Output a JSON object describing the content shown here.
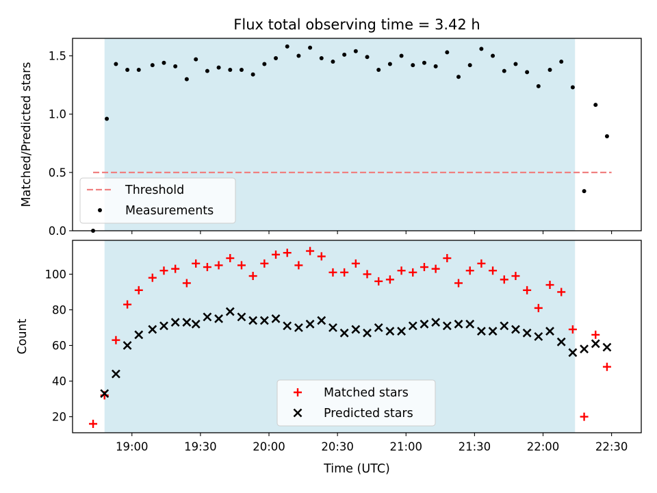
{
  "chart_data": [
    {
      "type": "scatter",
      "title": "Flux total observing time = 3.42 h",
      "xlabel": "",
      "ylabel": "Matched/Predicted stars",
      "ylim": [
        0,
        1.65
      ],
      "yticks": [
        0.0,
        0.5,
        1.0,
        1.5
      ],
      "ytick_labels": [
        "0.0",
        "0.5",
        "1.0",
        "1.5"
      ],
      "xlim": [
        "18:34",
        "22:43"
      ],
      "shaded_interval": [
        "18:48",
        "22:14"
      ],
      "shaded_color": "#add8e6",
      "threshold": {
        "name": "Threshold",
        "value": 0.5,
        "x_range": [
          "18:43",
          "22:30"
        ],
        "color": "#f08080",
        "style": "dashed"
      },
      "series": [
        {
          "name": "Measurements",
          "color": "#000000",
          "marker": "dot",
          "x": [
            "18:43",
            "18:49",
            "18:53",
            "18:58",
            "19:03",
            "19:09",
            "19:14",
            "19:19",
            "19:24",
            "19:28",
            "19:33",
            "19:38",
            "19:43",
            "19:48",
            "19:53",
            "19:58",
            "20:03",
            "20:08",
            "20:13",
            "20:18",
            "20:23",
            "20:28",
            "20:33",
            "20:38",
            "20:43",
            "20:48",
            "20:53",
            "20:58",
            "21:03",
            "21:08",
            "21:13",
            "21:18",
            "21:23",
            "21:28",
            "21:33",
            "21:38",
            "21:43",
            "21:48",
            "21:53",
            "21:58",
            "22:03",
            "22:08",
            "22:13",
            "22:18",
            "22:23",
            "22:28"
          ],
          "y": [
            0.0,
            0.96,
            1.43,
            1.38,
            1.38,
            1.42,
            1.44,
            1.41,
            1.3,
            1.47,
            1.37,
            1.4,
            1.38,
            1.38,
            1.34,
            1.43,
            1.48,
            1.58,
            1.5,
            1.57,
            1.48,
            1.45,
            1.51,
            1.54,
            1.49,
            1.38,
            1.43,
            1.5,
            1.42,
            1.44,
            1.41,
            1.53,
            1.32,
            1.42,
            1.56,
            1.5,
            1.37,
            1.43,
            1.36,
            1.24,
            1.38,
            1.45,
            1.23,
            0.34,
            1.08,
            0.81
          ]
        }
      ],
      "legend": {
        "placement": "lower-left",
        "entries": [
          "Threshold",
          "Measurements"
        ]
      }
    },
    {
      "type": "scatter",
      "title": "",
      "xlabel": "Time (UTC)",
      "ylabel": "Count",
      "ylim": [
        11,
        119
      ],
      "yticks": [
        20,
        40,
        60,
        80,
        100
      ],
      "ytick_labels": [
        "20",
        "40",
        "60",
        "80",
        "100"
      ],
      "xlim": [
        "18:34",
        "22:43"
      ],
      "xticks": [
        "19:00",
        "19:30",
        "20:00",
        "20:30",
        "21:00",
        "21:30",
        "22:00",
        "22:30"
      ],
      "xtick_labels": [
        "19:00",
        "19:30",
        "20:00",
        "20:30",
        "21:00",
        "21:30",
        "22:00",
        "22:30"
      ],
      "shaded_interval": [
        "18:48",
        "22:14"
      ],
      "shaded_color": "#add8e6",
      "series": [
        {
          "name": "Matched stars",
          "color": "#ff0000",
          "marker": "plus",
          "x": [
            "18:43",
            "18:48",
            "18:53",
            "18:58",
            "19:03",
            "19:09",
            "19:14",
            "19:19",
            "19:24",
            "19:28",
            "19:33",
            "19:38",
            "19:43",
            "19:48",
            "19:53",
            "19:58",
            "20:03",
            "20:08",
            "20:13",
            "20:18",
            "20:23",
            "20:28",
            "20:33",
            "20:38",
            "20:43",
            "20:48",
            "20:53",
            "20:58",
            "21:03",
            "21:08",
            "21:13",
            "21:18",
            "21:23",
            "21:28",
            "21:33",
            "21:38",
            "21:43",
            "21:48",
            "21:53",
            "21:58",
            "22:03",
            "22:08",
            "22:13",
            "22:18",
            "22:23",
            "22:28"
          ],
          "y": [
            16,
            32,
            63,
            83,
            91,
            98,
            102,
            103,
            95,
            106,
            104,
            105,
            109,
            105,
            99,
            106,
            111,
            112,
            105,
            113,
            110,
            101,
            101,
            106,
            100,
            96,
            97,
            102,
            101,
            104,
            103,
            109,
            95,
            102,
            106,
            102,
            97,
            99,
            91,
            81,
            94,
            90,
            69,
            20,
            66,
            48
          ]
        },
        {
          "name": "Predicted stars",
          "color": "#000000",
          "marker": "x",
          "x": [
            "18:48",
            "18:53",
            "18:58",
            "19:03",
            "19:09",
            "19:14",
            "19:19",
            "19:24",
            "19:28",
            "19:33",
            "19:38",
            "19:43",
            "19:48",
            "19:53",
            "19:58",
            "20:03",
            "20:08",
            "20:13",
            "20:18",
            "20:23",
            "20:28",
            "20:33",
            "20:38",
            "20:43",
            "20:48",
            "20:53",
            "20:58",
            "21:03",
            "21:08",
            "21:13",
            "21:18",
            "21:23",
            "21:28",
            "21:33",
            "21:38",
            "21:43",
            "21:48",
            "21:53",
            "21:58",
            "22:03",
            "22:08",
            "22:13",
            "22:18",
            "22:23",
            "22:28"
          ],
          "y": [
            33,
            44,
            60,
            66,
            69,
            71,
            73,
            73,
            72,
            76,
            75,
            79,
            76,
            74,
            74,
            75,
            71,
            70,
            72,
            74,
            70,
            67,
            69,
            67,
            70,
            68,
            68,
            71,
            72,
            73,
            71,
            72,
            72,
            68,
            68,
            71,
            69,
            67,
            65,
            68,
            62,
            56,
            58,
            61,
            59
          ]
        }
      ],
      "legend": {
        "placement": "lower-center",
        "entries": [
          "Matched stars",
          "Predicted stars"
        ]
      }
    }
  ]
}
